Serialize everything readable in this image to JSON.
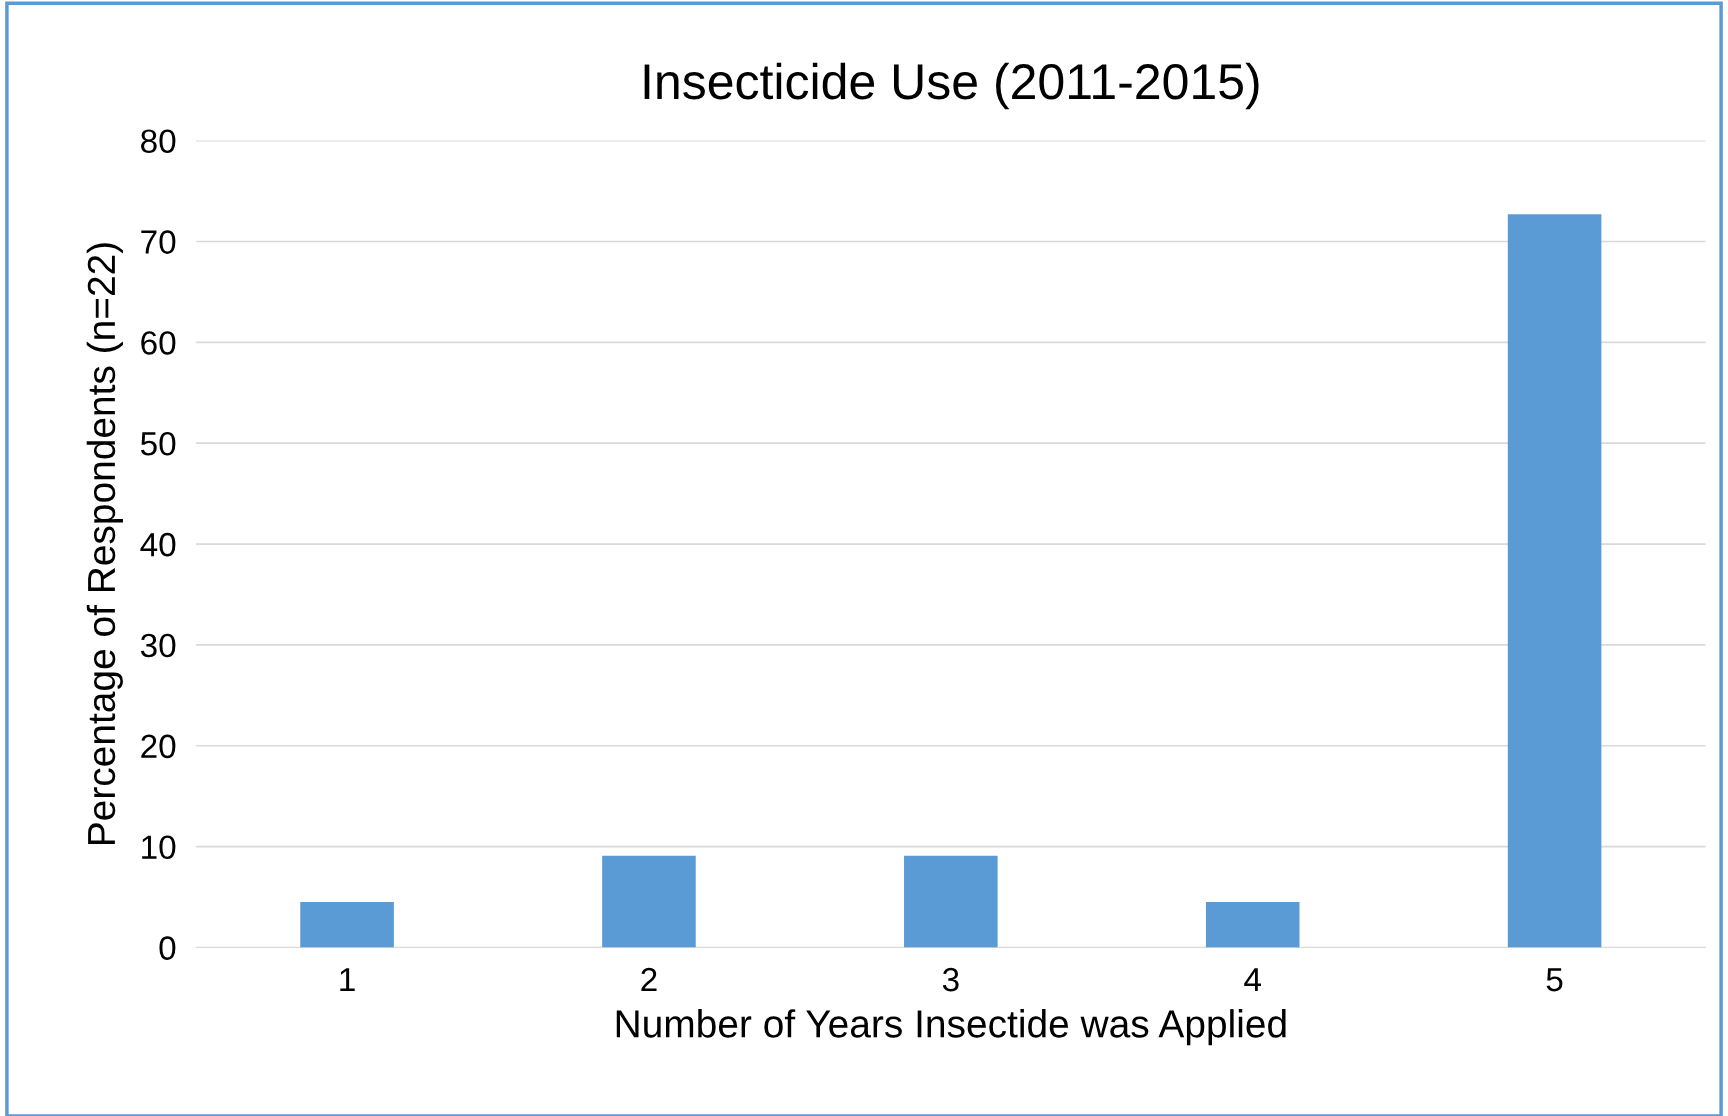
{
  "chart_data": {
    "type": "bar",
    "title": "Insecticide Use (2011-2015)",
    "xlabel": "Number of Years Insectide was Applied",
    "ylabel": "Percentage of Respondents (n=22)",
    "categories": [
      "1",
      "2",
      "3",
      "4",
      "5"
    ],
    "values": [
      4.5,
      9.1,
      9.1,
      4.5,
      72.7
    ],
    "color": "#5b9bd5",
    "ylim": [
      0,
      80
    ],
    "yticks": [
      0,
      10,
      20,
      30,
      40,
      50,
      60,
      70,
      80
    ],
    "grid": "y",
    "legend": false
  }
}
